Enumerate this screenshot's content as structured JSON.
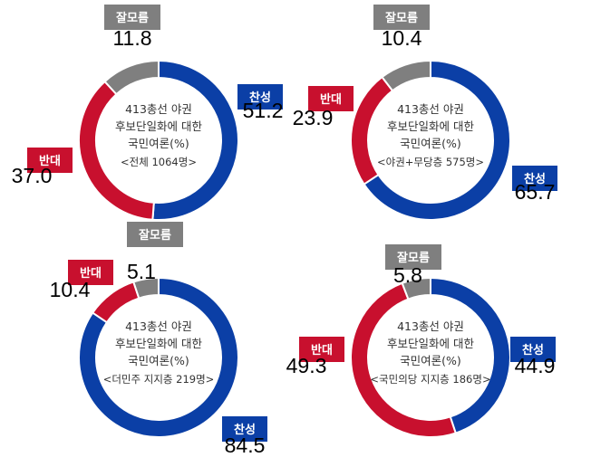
{
  "colors": {
    "agree": "#0b3fa6",
    "disagree": "#c8102e",
    "unknown": "#7f7f7f"
  },
  "chart_data": [
    {
      "type": "pie",
      "title_lines": [
        "413총선 야권",
        "후보단일화에 대한",
        "국민여론(%)"
      ],
      "subtitle": "<전체 1064명>",
      "series": [
        {
          "name": "찬성",
          "value": 51.2,
          "label": "51.2"
        },
        {
          "name": "반대",
          "value": 37.0,
          "label": "37.0"
        },
        {
          "name": "잘모름",
          "value": 11.8,
          "label": "11.8"
        }
      ]
    },
    {
      "type": "pie",
      "title_lines": [
        "413총선 야권",
        "후보단일화에 대한",
        "국민여론(%)"
      ],
      "subtitle": "<야권+무당층 575명>",
      "series": [
        {
          "name": "찬성",
          "value": 65.7,
          "label": "65.7"
        },
        {
          "name": "반대",
          "value": 23.9,
          "label": "23.9"
        },
        {
          "name": "잘모름",
          "value": 10.4,
          "label": "10.4"
        }
      ]
    },
    {
      "type": "pie",
      "title_lines": [
        "413총선 야권",
        "후보단일화에 대한",
        "국민여론(%)"
      ],
      "subtitle": "<더민주 지지층 219명>",
      "series": [
        {
          "name": "찬성",
          "value": 84.5,
          "label": "84.5"
        },
        {
          "name": "반대",
          "value": 10.4,
          "label": "10.4"
        },
        {
          "name": "잘모름",
          "value": 5.1,
          "label": "5.1"
        }
      ]
    },
    {
      "type": "pie",
      "title_lines": [
        "413총선 야권",
        "후보단일화에 대한",
        "국민여론(%)"
      ],
      "subtitle": "<국민의당 지지층 186명>",
      "series": [
        {
          "name": "찬성",
          "value": 44.9,
          "label": "44.9"
        },
        {
          "name": "반대",
          "value": 49.3,
          "label": "49.3"
        },
        {
          "name": "잘모름",
          "value": 5.8,
          "label": "5.8"
        }
      ]
    }
  ]
}
